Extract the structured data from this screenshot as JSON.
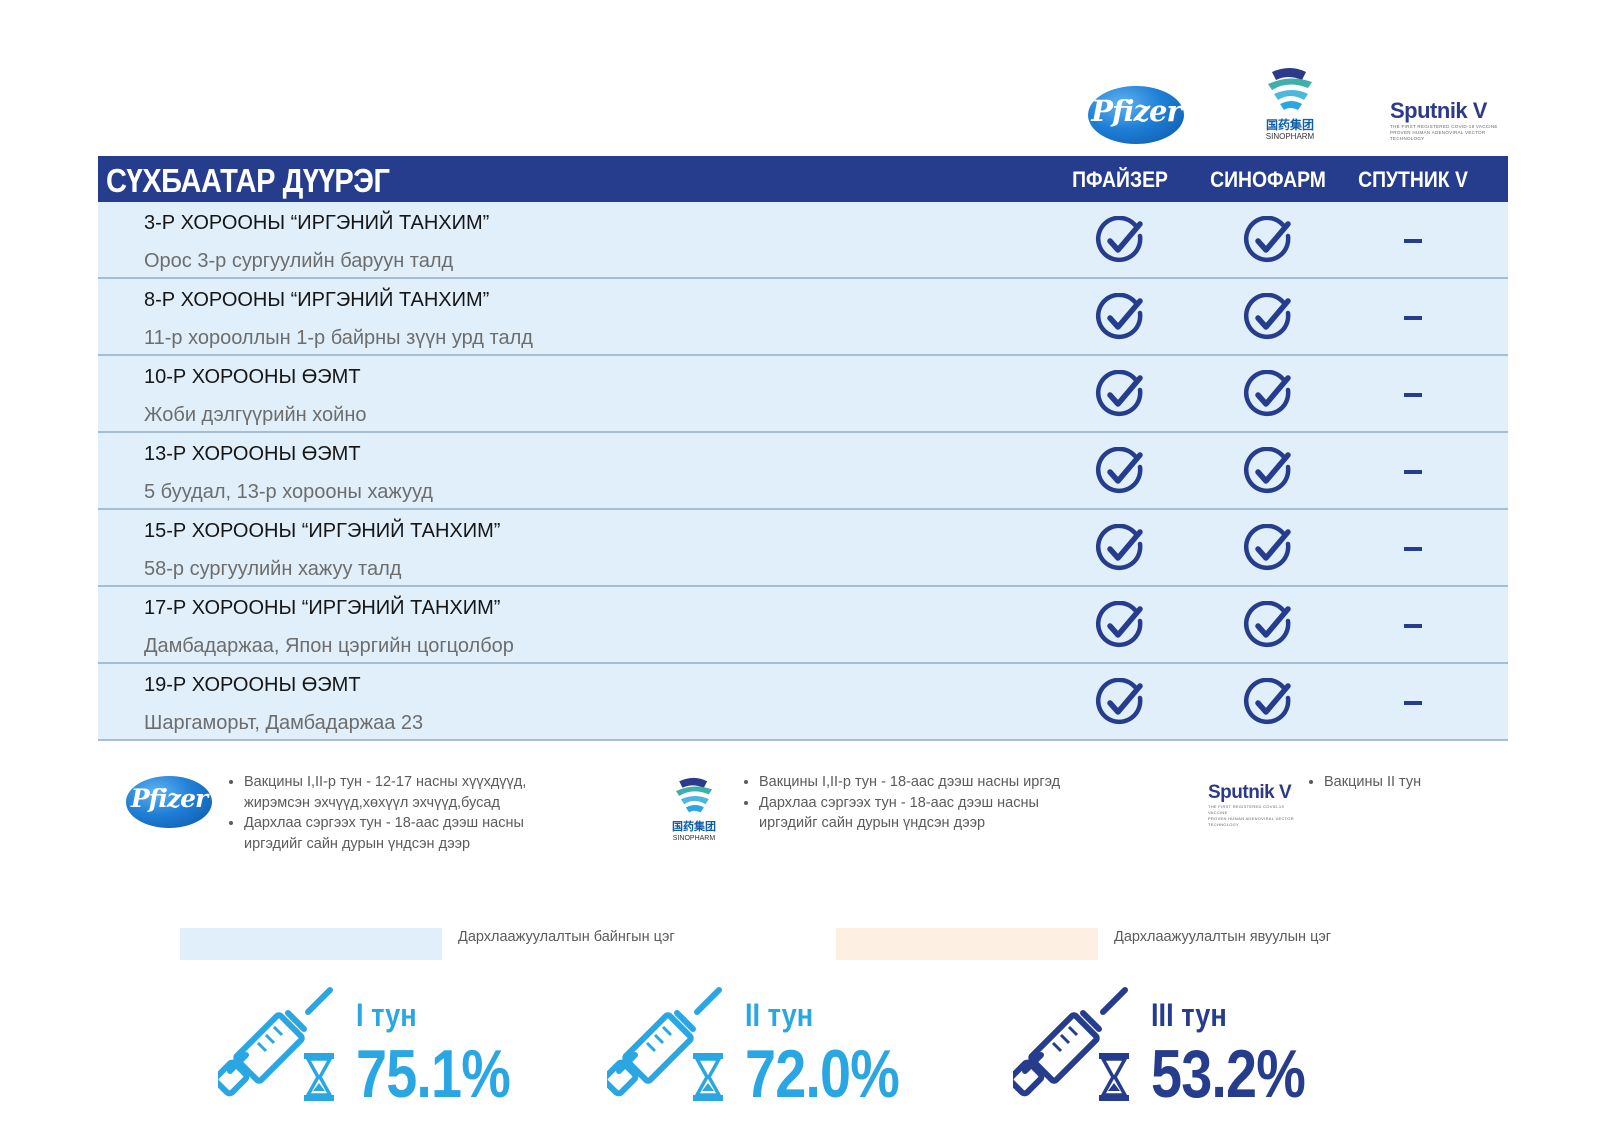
{
  "logos": {
    "pfizer": "Pfizer",
    "sinopharm_cn": "国药集团",
    "sinopharm_en": "SINOPHARM",
    "sputnik": "Sputnik V",
    "sputnik_tag": "THE FIRST REGISTERED COVID-19 VACCINE",
    "sputnik_sub": "PROVEN HUMAN ADENOVIRAL VECTOR TECHNOLOGY"
  },
  "table": {
    "district": "СҮХБААТАР ДҮҮРЭГ",
    "columns": [
      "ПФАЙЗЕР",
      "СИНОФАРМ",
      "СПУТНИК V"
    ],
    "rows": [
      {
        "title": "3-Р ХОРООНЫ “ИРГЭНИЙ ТАНХИМ”",
        "address": "Орос 3-р сургуулийн баруун талд",
        "pfizer": "check",
        "sinopharm": "check",
        "sputnik": "dash"
      },
      {
        "title": "8-Р ХОРООНЫ “ИРГЭНИЙ ТАНХИМ”",
        "address": "11-р хорооллын 1-р байрны зүүн урд талд",
        "pfizer": "check",
        "sinopharm": "check",
        "sputnik": "dash"
      },
      {
        "title": "10-Р ХОРООНЫ ӨЭМТ",
        "address": "Жоби дэлгүүрийн хойно",
        "pfizer": "check",
        "sinopharm": "check",
        "sputnik": "dash"
      },
      {
        "title": "13-Р ХОРООНЫ ӨЭМТ",
        "address": "5 буудал, 13-р хорооны хажууд",
        "pfizer": "check",
        "sinopharm": "check",
        "sputnik": "dash"
      },
      {
        "title": "15-Р ХОРООНЫ “ИРГЭНИЙ ТАНХИМ”",
        "address": "58-р сургуулийн хажуу талд",
        "pfizer": "check",
        "sinopharm": "check",
        "sputnik": "dash"
      },
      {
        "title": "17-Р ХОРООНЫ “ИРГЭНИЙ ТАНХИМ”",
        "address": "Дамбадаржаа, Япон цэргийн цогцолбор",
        "pfizer": "check",
        "sinopharm": "check",
        "sputnik": "dash"
      },
      {
        "title": "19-Р ХОРООНЫ ӨЭМТ",
        "address": "Шаргаморьт, Дамбадаржаа 23",
        "pfizer": "check",
        "sinopharm": "check",
        "sputnik": "dash"
      }
    ]
  },
  "notes": {
    "pfizer": [
      "Вакцины I,II-р тун - 12-17 насны хүүхдүүд, жирэмсэн эхчүүд,хөхүүл эхчүүд,бусад",
      "Дархлаа сэргээх тун - 18-аас дээш насны иргэдийг сайн дурын үндсэн дээр"
    ],
    "sinopharm": [
      "Вакцины I,II-р тун - 18-аас дээш насны иргэд",
      "Дархлаа сэргээх тун - 18-аас дээш насны иргэдийг сайн дурын үндсэн дээр"
    ],
    "sputnik": [
      "Вакцины II тун"
    ]
  },
  "legend": {
    "fixed": "Дархлаажуулалтын байнгын цэг",
    "mobile": "Дархлаажуулалтын явуулын цэг",
    "fixed_color": "#e0effa",
    "mobile_color": "#fdf0e3"
  },
  "stats": [
    {
      "dose": "I тун",
      "percent": "75.1%",
      "color": "#2aa7e3"
    },
    {
      "dose": "II тун",
      "percent": "72.0%",
      "color": "#2aa7e3"
    },
    {
      "dose": "III тун",
      "percent": "53.2%",
      "color": "#253d8c"
    }
  ],
  "colors": {
    "header": "#253d8c",
    "row": "#e0effa",
    "check": "#253d8c"
  }
}
